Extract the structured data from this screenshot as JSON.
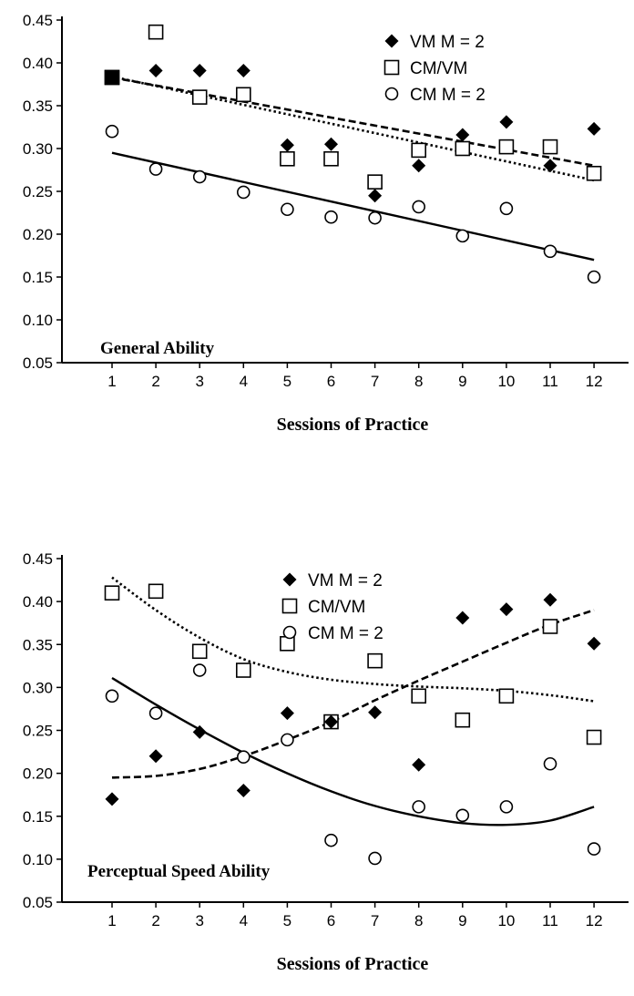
{
  "chart_data": [
    {
      "type": "scatter",
      "xlabel": "Sessions of Practice",
      "ylabel": "",
      "ylim": [
        0.05,
        0.45
      ],
      "xlim": [
        0,
        13
      ],
      "panel_label": "General Ability",
      "legend_position": "top-right",
      "x": [
        1,
        2,
        3,
        4,
        5,
        6,
        7,
        8,
        9,
        10,
        11,
        12
      ],
      "x_tick_labels": [
        "1",
        "2",
        "3",
        "4",
        "5",
        "6",
        "7",
        "8",
        "9",
        "10",
        "11",
        "12"
      ],
      "y_tick_labels": [
        "0.45",
        "0.40",
        "0.35",
        "0.30",
        "0.25",
        "0.20",
        "0.15",
        "0.10",
        "0.05"
      ],
      "y_ticks": [
        0.45,
        0.4,
        0.35,
        0.3,
        0.25,
        0.2,
        0.15,
        0.1,
        0.05
      ],
      "series": [
        {
          "name": "VM M = 2",
          "marker": "diamond",
          "values": [
            0.383,
            0.391,
            0.391,
            0.391,
            0.304,
            0.305,
            0.245,
            0.28,
            0.316,
            0.331,
            0.28,
            0.323
          ],
          "fit": {
            "style": "dashed",
            "kind": "linear",
            "points": [
              [
                1,
                0.383
              ],
              [
                12,
                0.28
              ]
            ]
          }
        },
        {
          "name": "CM/VM",
          "marker": "square",
          "values": [
            0.383,
            0.436,
            0.36,
            0.363,
            0.288,
            0.288,
            0.261,
            0.298,
            0.3,
            0.302,
            0.302,
            0.271
          ],
          "fit": {
            "style": "dotted",
            "kind": "linear",
            "points": [
              [
                1,
                0.384
              ],
              [
                12,
                0.263
              ]
            ]
          }
        },
        {
          "name": "CM M = 2",
          "marker": "circle",
          "values": [
            0.32,
            0.276,
            0.267,
            0.249,
            0.229,
            0.22,
            0.219,
            0.232,
            0.198,
            0.23,
            0.18,
            0.15
          ],
          "fit": {
            "style": "solid",
            "kind": "linear",
            "points": [
              [
                1,
                0.295
              ],
              [
                12,
                0.17
              ]
            ]
          }
        }
      ]
    },
    {
      "type": "scatter",
      "xlabel": "Sessions of Practice",
      "ylabel": "",
      "ylim": [
        0.05,
        0.45
      ],
      "xlim": [
        0,
        13
      ],
      "panel_label": "Perceptual Speed Ability",
      "legend_position": "top-center",
      "x": [
        1,
        2,
        3,
        4,
        5,
        6,
        7,
        8,
        9,
        10,
        11,
        12
      ],
      "x_tick_labels": [
        "1",
        "2",
        "3",
        "4",
        "5",
        "6",
        "7",
        "8",
        "9",
        "10",
        "11",
        "12"
      ],
      "y_tick_labels": [
        "0.45",
        "0.40",
        "0.35",
        "0.30",
        "0.25",
        "0.20",
        "0.15",
        "0.10",
        "0.05"
      ],
      "y_ticks": [
        0.45,
        0.4,
        0.35,
        0.3,
        0.25,
        0.2,
        0.15,
        0.1,
        0.05
      ],
      "series": [
        {
          "name": "VM M = 2",
          "marker": "diamond",
          "values": [
            0.17,
            0.22,
            0.248,
            0.18,
            0.27,
            0.26,
            0.271,
            0.21,
            0.381,
            0.391,
            0.402,
            0.351
          ],
          "fit": {
            "style": "dashed",
            "kind": "curve",
            "points": [
              [
                1,
                0.195
              ],
              [
                2,
                0.197
              ],
              [
                3,
                0.205
              ],
              [
                4,
                0.22
              ],
              [
                5,
                0.239
              ],
              [
                6,
                0.26
              ],
              [
                7,
                0.285
              ],
              [
                8,
                0.308
              ],
              [
                9,
                0.33
              ],
              [
                10,
                0.352
              ],
              [
                11,
                0.373
              ],
              [
                12,
                0.39
              ]
            ]
          }
        },
        {
          "name": "CM/VM",
          "marker": "square",
          "values": [
            0.41,
            0.412,
            0.342,
            0.32,
            0.351,
            0.26,
            0.331,
            0.29,
            0.262,
            0.29,
            0.371,
            0.242
          ],
          "fit": {
            "style": "dotted",
            "kind": "curve",
            "points": [
              [
                1,
                0.428
              ],
              [
                2,
                0.39
              ],
              [
                3,
                0.358
              ],
              [
                4,
                0.333
              ],
              [
                5,
                0.318
              ],
              [
                6,
                0.309
              ],
              [
                7,
                0.304
              ],
              [
                8,
                0.301
              ],
              [
                9,
                0.299
              ],
              [
                10,
                0.296
              ],
              [
                11,
                0.291
              ],
              [
                12,
                0.284
              ]
            ]
          }
        },
        {
          "name": "CM M = 2",
          "marker": "circle",
          "values": [
            0.29,
            0.27,
            0.32,
            0.219,
            0.239,
            0.122,
            0.101,
            0.161,
            0.151,
            0.161,
            0.211,
            0.112
          ],
          "fit": {
            "style": "solid",
            "kind": "curve",
            "points": [
              [
                1,
                0.311
              ],
              [
                2,
                0.28
              ],
              [
                3,
                0.251
              ],
              [
                4,
                0.224
              ],
              [
                5,
                0.2
              ],
              [
                6,
                0.179
              ],
              [
                7,
                0.162
              ],
              [
                8,
                0.15
              ],
              [
                9,
                0.142
              ],
              [
                10,
                0.14
              ],
              [
                11,
                0.145
              ],
              [
                12,
                0.161
              ]
            ]
          }
        }
      ]
    }
  ]
}
